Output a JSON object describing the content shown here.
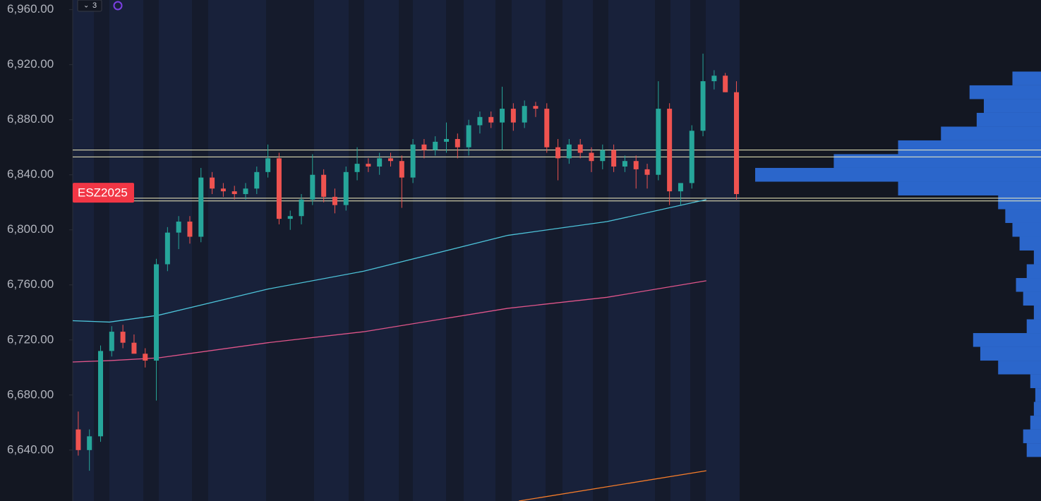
{
  "toolbar": {
    "badge": "3"
  },
  "chart_data": {
    "type": "candlestick",
    "symbol_label": "ESZ2025",
    "symbol_price": 6827,
    "ylim": [
      6603,
      6967
    ],
    "yticks": [
      {
        "value": 6640,
        "label": "6,640.00"
      },
      {
        "value": 6680,
        "label": "6,680.00"
      },
      {
        "value": 6720,
        "label": "6,720.00"
      },
      {
        "value": 6760,
        "label": "6,760.00"
      },
      {
        "value": 6800,
        "label": "6,800.00"
      },
      {
        "value": 6840,
        "label": "6,840.00"
      },
      {
        "value": 6880,
        "label": "6,880.00"
      },
      {
        "value": 6920,
        "label": "6,920.00"
      },
      {
        "value": 6960,
        "label": "6,960.00"
      }
    ],
    "xlim": [
      -0.5,
      86.3
    ],
    "up_color": "#26a69a",
    "down_color": "#ef5350",
    "open": [
      6655,
      6640,
      6650,
      6712,
      6726,
      6718,
      6710,
      6705,
      6775,
      6798,
      6806,
      6795,
      6838,
      6830,
      6828,
      6826,
      6830,
      6842,
      6852,
      6808,
      6810,
      6822,
      6840,
      6824,
      6818,
      6842,
      6848,
      6846,
      6852,
      6850,
      6838,
      6862,
      6858,
      6864,
      6866,
      6860,
      6876,
      6882,
      6878,
      6888,
      6878,
      6890,
      6888,
      6860,
      6852,
      6862,
      6856,
      6850,
      6858,
      6846,
      6850,
      6844,
      6840,
      6888,
      6828,
      6834,
      6872,
      6908,
      6912,
      6900
    ],
    "high": [
      6668,
      6655,
      6716,
      6730,
      6731,
      6724,
      6714,
      6779,
      6802,
      6810,
      6810,
      6845,
      6842,
      6834,
      6832,
      6834,
      6846,
      6862,
      6856,
      6814,
      6826,
      6855,
      6844,
      6830,
      6846,
      6860,
      6852,
      6856,
      6856,
      6854,
      6866,
      6866,
      6868,
      6878,
      6870,
      6880,
      6886,
      6886,
      6904,
      6892,
      6894,
      6893,
      6892,
      6866,
      6866,
      6866,
      6860,
      6862,
      6862,
      6854,
      6854,
      6848,
      6908,
      6892,
      6834,
      6876,
      6928,
      6916,
      6914,
      6908
    ],
    "low": [
      6636,
      6625,
      6646,
      6708,
      6714,
      6712,
      6700,
      6676,
      6770,
      6786,
      6790,
      6791,
      6826,
      6824,
      6822,
      6822,
      6826,
      6838,
      6804,
      6800,
      6804,
      6818,
      6820,
      6812,
      6814,
      6836,
      6842,
      6840,
      6846,
      6816,
      6834,
      6852,
      6854,
      6856,
      6852,
      6854,
      6870,
      6874,
      6858,
      6872,
      6874,
      6882,
      6856,
      6836,
      6848,
      6852,
      6842,
      6844,
      6842,
      6842,
      6830,
      6830,
      6836,
      6818,
      6818,
      6830,
      6868,
      6902,
      6900,
      6822
    ],
    "close": [
      6640,
      6650,
      6712,
      6726,
      6718,
      6710,
      6705,
      6775,
      6798,
      6806,
      6795,
      6838,
      6830,
      6828,
      6826,
      6830,
      6842,
      6852,
      6808,
      6810,
      6822,
      6840,
      6824,
      6818,
      6842,
      6848,
      6846,
      6852,
      6850,
      6838,
      6862,
      6858,
      6864,
      6866,
      6860,
      6876,
      6882,
      6878,
      6888,
      6878,
      6890,
      6888,
      6860,
      6852,
      6862,
      6856,
      6850,
      6858,
      6846,
      6850,
      6844,
      6840,
      6888,
      6828,
      6834,
      6872,
      6908,
      6912,
      6900,
      6826
    ],
    "lines": [
      {
        "color": "#4dc3d9",
        "x": [
          -0.5,
          2.8,
          7.2,
          17.0,
          25.6,
          38.5,
          47.4,
          56.3
        ],
        "values": [
          6734,
          6733,
          6738,
          6757,
          6770,
          6796,
          6806,
          6822
        ]
      },
      {
        "color": "#e0558a",
        "x": [
          -0.5,
          2.8,
          7.2,
          17.0,
          25.6,
          38.5,
          47.4,
          56.3
        ],
        "values": [
          6704,
          6705,
          6707,
          6718,
          6726,
          6743,
          6751,
          6763
        ]
      },
      {
        "color": "#f57c2a",
        "x": [
          39.5,
          56.3
        ],
        "values": [
          6603,
          6625
        ]
      }
    ],
    "levels": {
      "color": "#f3f0c0",
      "values": [
        6858,
        6853,
        6823,
        6821
      ]
    },
    "profile": {
      "color": "#2f6fde",
      "prices": [
        6640,
        6650,
        6660,
        6670,
        6680,
        6690,
        6700,
        6710,
        6720,
        6730,
        6740,
        6750,
        6760,
        6770,
        6780,
        6790,
        6800,
        6810,
        6820,
        6830,
        6840,
        6850,
        6860,
        6870,
        6880,
        6890,
        6900,
        6910
      ],
      "volumes": [
        20,
        25,
        15,
        10,
        8,
        15,
        60,
        85,
        95,
        20,
        10,
        25,
        35,
        20,
        10,
        30,
        40,
        50,
        60,
        200,
        400,
        290,
        200,
        140,
        90,
        80,
        100,
        40
      ]
    }
  }
}
